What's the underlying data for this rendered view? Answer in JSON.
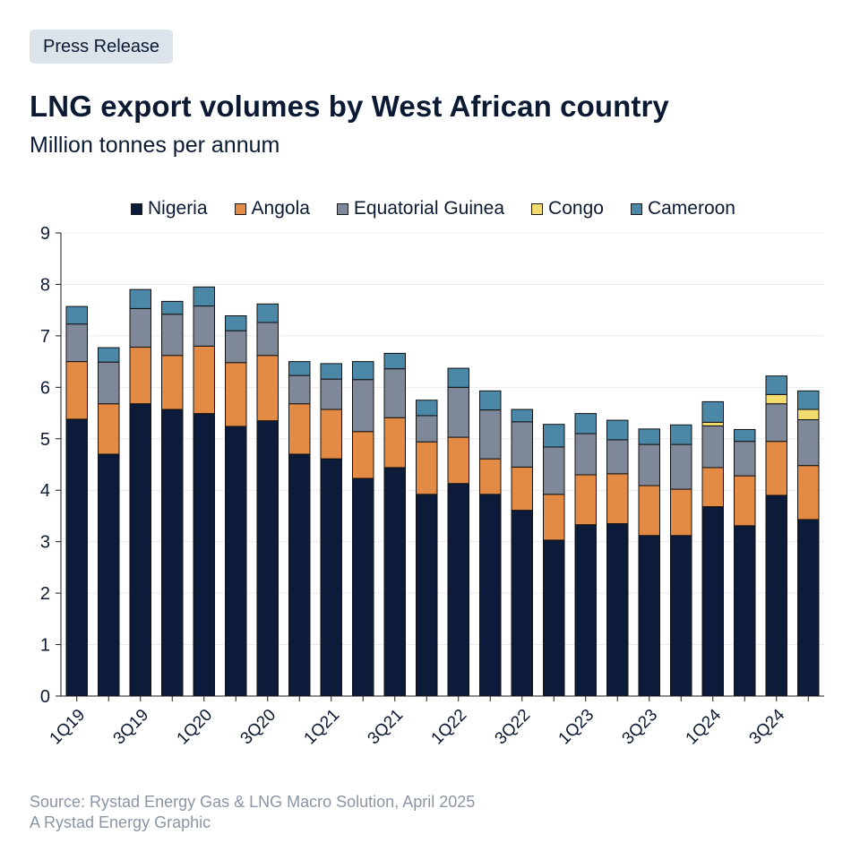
{
  "badge": "Press Release",
  "title": "LNG export volumes by West African country",
  "subtitle": "Million tonnes per annum",
  "footer": {
    "source": "Source: Rystad Energy Gas & LNG Macro Solution, April 2025",
    "credit": "A Rystad Energy Graphic"
  },
  "chart_data": {
    "type": "bar",
    "stacked": true,
    "title": "LNG export volumes by West African country",
    "ylabel": "Million tonnes per annum",
    "ylim": [
      0,
      9
    ],
    "yticks": [
      0,
      1,
      2,
      3,
      4,
      5,
      6,
      7,
      8,
      9
    ],
    "grid": true,
    "legend_position": "top",
    "categories": [
      "1Q19",
      "2Q19",
      "3Q19",
      "4Q19",
      "1Q20",
      "2Q20",
      "3Q20",
      "4Q20",
      "1Q21",
      "2Q21",
      "3Q21",
      "4Q21",
      "1Q22",
      "2Q22",
      "3Q22",
      "4Q22",
      "1Q23",
      "2Q23",
      "3Q23",
      "4Q23",
      "1Q24",
      "2Q24",
      "3Q24",
      "4Q24"
    ],
    "xtick_labels": [
      "1Q19",
      "",
      "3Q19",
      "",
      "1Q20",
      "",
      "3Q20",
      "",
      "1Q21",
      "",
      "3Q21",
      "",
      "1Q22",
      "",
      "3Q22",
      "",
      "1Q23",
      "",
      "3Q23",
      "",
      "1Q24",
      "",
      "3Q24",
      ""
    ],
    "series": [
      {
        "name": "Nigeria",
        "color": "#0c1b3a",
        "values": [
          5.38,
          4.7,
          5.68,
          5.57,
          5.49,
          5.24,
          5.35,
          4.7,
          4.61,
          4.23,
          4.44,
          3.92,
          4.13,
          3.92,
          3.61,
          3.03,
          3.33,
          3.35,
          3.12,
          3.12,
          3.68,
          3.31,
          3.9,
          3.43
        ]
      },
      {
        "name": "Angola",
        "color": "#e38a45",
        "values": [
          1.12,
          0.98,
          1.1,
          1.05,
          1.31,
          1.24,
          1.27,
          0.98,
          0.96,
          0.91,
          0.97,
          1.02,
          0.9,
          0.69,
          0.84,
          0.89,
          0.97,
          0.97,
          0.97,
          0.9,
          0.76,
          0.97,
          1.05,
          1.05
        ]
      },
      {
        "name": "Equatorial Guinea",
        "color": "#7e8898",
        "values": [
          0.73,
          0.81,
          0.75,
          0.8,
          0.78,
          0.62,
          0.64,
          0.55,
          0.59,
          1.01,
          0.95,
          0.51,
          0.97,
          0.95,
          0.88,
          0.92,
          0.8,
          0.66,
          0.8,
          0.87,
          0.81,
          0.67,
          0.73,
          0.89
        ]
      },
      {
        "name": "Congo",
        "color": "#f3dc6e",
        "values": [
          0,
          0,
          0,
          0,
          0,
          0,
          0,
          0,
          0,
          0,
          0,
          0,
          0,
          0,
          0,
          0,
          0,
          0,
          0,
          0,
          0.07,
          0,
          0.18,
          0.2
        ]
      },
      {
        "name": "Cameroon",
        "color": "#4b88a8",
        "values": [
          0.34,
          0.28,
          0.37,
          0.25,
          0.37,
          0.29,
          0.36,
          0.27,
          0.3,
          0.35,
          0.3,
          0.3,
          0.37,
          0.37,
          0.24,
          0.44,
          0.39,
          0.38,
          0.3,
          0.38,
          0.4,
          0.23,
          0.36,
          0.36
        ]
      }
    ]
  }
}
